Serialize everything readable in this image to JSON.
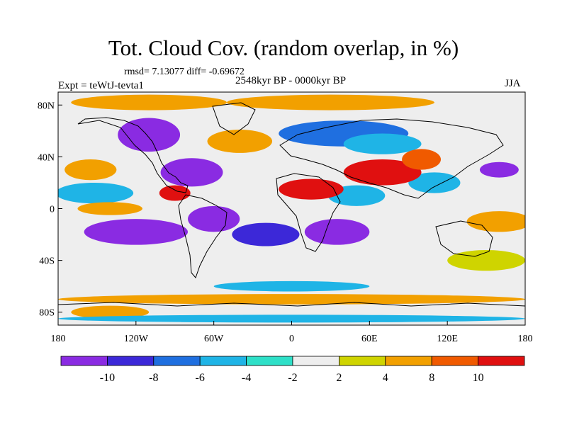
{
  "header": {
    "title": "Tot. Cloud Cov. (random overlap, in %)",
    "stats": "rmsd= 7.13077 diff= -0.69672",
    "period": "2548kyr BP - 0000kyr BP",
    "experiment": "Expt = teWtJ-tevta1",
    "season": "JJA"
  },
  "chart_data": {
    "type": "heatmap",
    "title": "Tot. Cloud Cov. (random overlap, in %)",
    "subtitle": "2548kyr BP - 0000kyr BP",
    "xlim": [
      -180,
      180
    ],
    "ylim": [
      -90,
      90
    ],
    "x_ticks": [
      {
        "value": -180,
        "label": "180"
      },
      {
        "value": -120,
        "label": "120W"
      },
      {
        "value": -60,
        "label": "60W"
      },
      {
        "value": 0,
        "label": "0"
      },
      {
        "value": 60,
        "label": "60E"
      },
      {
        "value": 120,
        "label": "120E"
      },
      {
        "value": 180,
        "label": "180"
      }
    ],
    "y_ticks": [
      {
        "value": 80,
        "label": "80N"
      },
      {
        "value": 40,
        "label": "40N"
      },
      {
        "value": 0,
        "label": "0"
      },
      {
        "value": -40,
        "label": "40S"
      },
      {
        "value": -80,
        "label": "80S"
      }
    ],
    "colorbar": {
      "levels": [
        -10,
        -8,
        -6,
        -4,
        -2,
        2,
        4,
        8,
        10
      ],
      "labels": [
        "-10",
        "-8",
        "-6",
        "-4",
        "-2",
        "2",
        "4",
        "8",
        "10"
      ],
      "colors": [
        "#8a2be2",
        "#3c28d8",
        "#1f6fe0",
        "#1fb4e6",
        "#2ee0c8",
        "#eeeeee",
        "#cfd400",
        "#f2a000",
        "#f05a00",
        "#e01010"
      ]
    },
    "regions": [
      {
        "lon": -110,
        "lat": 57,
        "rlon": 24,
        "rlat": 13,
        "v": -11
      },
      {
        "lon": -77,
        "lat": 28,
        "rlon": 24,
        "rlat": 11,
        "v": -11
      },
      {
        "lon": -152,
        "lat": 12,
        "rlon": 30,
        "rlat": 8,
        "v": -5
      },
      {
        "lon": -120,
        "lat": -18,
        "rlon": 40,
        "rlat": 10,
        "v": -11
      },
      {
        "lon": -60,
        "lat": -8,
        "rlon": 20,
        "rlat": 10,
        "v": -11
      },
      {
        "lon": -20,
        "lat": -20,
        "rlon": 26,
        "rlat": 9,
        "v": -9
      },
      {
        "lon": 35,
        "lat": -18,
        "rlon": 25,
        "rlat": 10,
        "v": -11
      },
      {
        "lon": 40,
        "lat": 58,
        "rlon": 50,
        "rlat": 10,
        "v": -8
      },
      {
        "lon": 70,
        "lat": 50,
        "rlon": 30,
        "rlat": 8,
        "v": -5
      },
      {
        "lon": 160,
        "lat": 30,
        "rlon": 15,
        "rlat": 6,
        "v": -11
      },
      {
        "lon": 110,
        "lat": 20,
        "rlon": 20,
        "rlat": 8,
        "v": -5
      },
      {
        "lon": 50,
        "lat": 10,
        "rlon": 22,
        "rlat": 8,
        "v": -5
      },
      {
        "lon": -140,
        "lat": 0,
        "rlon": 25,
        "rlat": 5,
        "v": 6
      },
      {
        "lon": -155,
        "lat": 30,
        "rlon": 20,
        "rlat": 8,
        "v": 6
      },
      {
        "lon": -40,
        "lat": 52,
        "rlon": 25,
        "rlat": 9,
        "v": 6
      },
      {
        "lon": 15,
        "lat": 15,
        "rlon": 25,
        "rlat": 8,
        "v": 11
      },
      {
        "lon": 70,
        "lat": 28,
        "rlon": 30,
        "rlat": 10,
        "v": 11
      },
      {
        "lon": 100,
        "lat": 38,
        "rlon": 15,
        "rlat": 8,
        "v": 9
      },
      {
        "lon": -90,
        "lat": 12,
        "rlon": 12,
        "rlat": 6,
        "v": 11
      },
      {
        "lon": -110,
        "lat": 82,
        "rlon": 60,
        "rlat": 6,
        "v": 6
      },
      {
        "lon": 30,
        "lat": 82,
        "rlon": 80,
        "rlat": 6,
        "v": 6
      },
      {
        "lon": 160,
        "lat": -10,
        "rlon": 25,
        "rlat": 8,
        "v": 6
      },
      {
        "lon": 0,
        "lat": -70,
        "rlon": 180,
        "rlat": 4,
        "v": 6
      },
      {
        "lon": -140,
        "lat": -80,
        "rlon": 30,
        "rlat": 5,
        "v": 6
      },
      {
        "lon": 0,
        "lat": -85,
        "rlon": 180,
        "rlat": 3,
        "v": -5
      },
      {
        "lon": 150,
        "lat": -40,
        "rlon": 30,
        "rlat": 8,
        "v": 3
      },
      {
        "lon": 0,
        "lat": -60,
        "rlon": 60,
        "rlat": 4,
        "v": -5
      }
    ]
  }
}
